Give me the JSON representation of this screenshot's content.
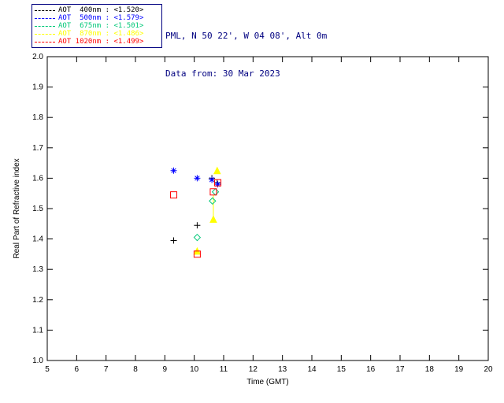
{
  "header": {
    "station": "PML, N 50 22', W 04 08', Alt 0m",
    "date": "Data from: 30 Mar 2023"
  },
  "legend": {
    "position": "top-left",
    "items": [
      {
        "label": "AOT  400nm : <1.520>",
        "color": "#000000"
      },
      {
        "label": "AOT  500nm : <1.579>",
        "color": "#0000ff"
      },
      {
        "label": "AOT  675nm : <1.501>",
        "color": "#00c878"
      },
      {
        "label": "AOT  870nm : <1.486>",
        "color": "#ffff00"
      },
      {
        "label": "AOT 1020nm : <1.499>",
        "color": "#ff0000"
      }
    ]
  },
  "chart_data": {
    "type": "scatter",
    "title": "",
    "xlabel": "Time (GMT)",
    "ylabel": "Real Part of Refractive index",
    "xlim": [
      5,
      20
    ],
    "ylim": [
      1.0,
      2.0
    ],
    "xticks": [
      5,
      6,
      7,
      8,
      9,
      10,
      11,
      12,
      13,
      14,
      15,
      16,
      17,
      18,
      19,
      20
    ],
    "yticks": [
      1.0,
      1.1,
      1.2,
      1.3,
      1.4,
      1.5,
      1.6,
      1.7,
      1.8,
      1.9,
      2.0
    ],
    "grid": false,
    "legend_position": "top-left",
    "series": [
      {
        "name": "AOT 400nm",
        "mean": 1.52,
        "color": "#000000",
        "marker": "plus",
        "points": [
          [
            9.3,
            1.395
          ],
          [
            10.1,
            1.445
          ],
          [
            10.6,
            1.6
          ],
          [
            10.78,
            1.585
          ]
        ]
      },
      {
        "name": "AOT 500nm",
        "mean": 1.579,
        "color": "#0000ff",
        "marker": "asterisk",
        "points": [
          [
            9.3,
            1.625
          ],
          [
            10.1,
            1.6
          ],
          [
            10.6,
            1.595
          ],
          [
            10.8,
            1.58
          ]
        ]
      },
      {
        "name": "AOT 675nm",
        "mean": 1.501,
        "color": "#00c878",
        "marker": "diamond",
        "points": [
          [
            10.1,
            1.405
          ],
          [
            10.62,
            1.525
          ],
          [
            10.72,
            1.555
          ]
        ]
      },
      {
        "name": "AOT 870nm",
        "mean": 1.486,
        "color": "#ffff00",
        "marker": "triangle",
        "points": [
          [
            10.1,
            1.36
          ],
          [
            10.65,
            1.465
          ],
          [
            10.78,
            1.625
          ]
        ]
      },
      {
        "name": "AOT 1020nm",
        "mean": 1.499,
        "color": "#ff0000",
        "marker": "square",
        "points": [
          [
            9.3,
            1.545
          ],
          [
            10.1,
            1.35
          ],
          [
            10.65,
            1.555
          ],
          [
            10.8,
            1.585
          ]
        ]
      }
    ],
    "segments": [
      {
        "x1": 10.65,
        "y1": 1.465,
        "x2": 10.65,
        "y2": 1.545,
        "color": "#ffff00"
      }
    ]
  }
}
